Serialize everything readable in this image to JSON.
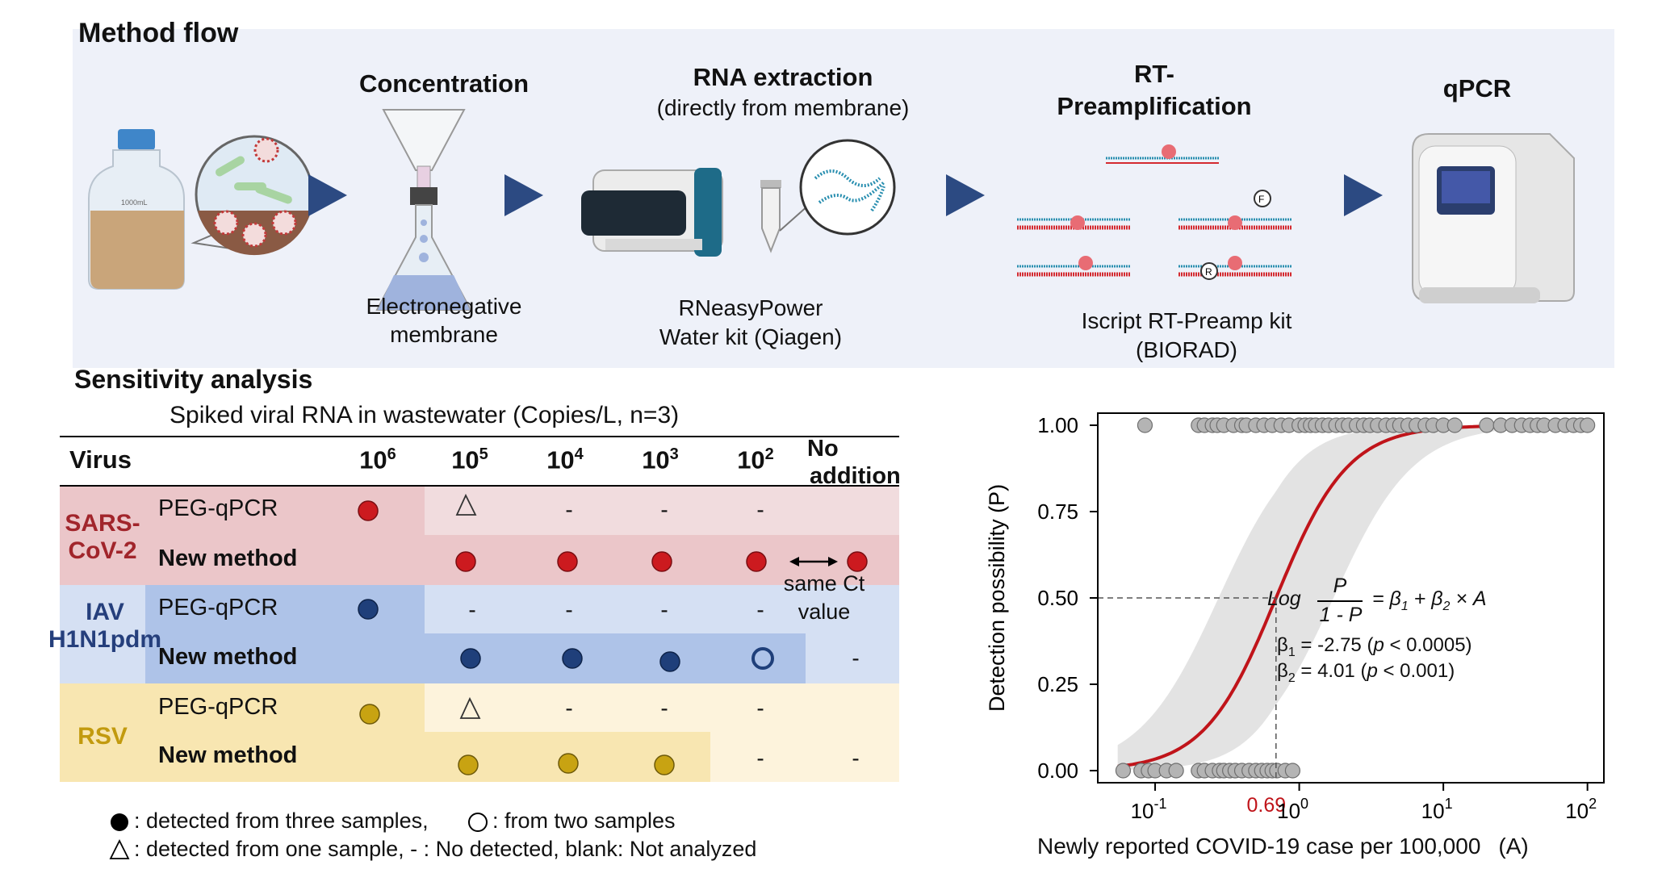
{
  "method_flow": {
    "title": "Method flow",
    "steps": {
      "concentration": {
        "title": "Concentration",
        "caption_line1": "Electronegative",
        "caption_line2": "membrane"
      },
      "rna_extraction": {
        "title": "RNA extraction",
        "subtitle": "(directly from membrane)",
        "caption_line1": "RNeasyPower",
        "caption_line2": "Water kit (Qiagen)"
      },
      "rt_preamp": {
        "title_line1": "RT-",
        "title_line2": "Preamplification",
        "caption_line1": "Iscript RT-Preamp kit",
        "caption_line2": "(BIORAD)"
      },
      "qpcr": {
        "title": "qPCR"
      }
    },
    "bottle_label": "1000mL",
    "probe_labels": {
      "f": "F",
      "r": "R"
    }
  },
  "sensitivity": {
    "title": "Sensitivity analysis",
    "subtitle": "Spiked viral RNA in wastewater (Copies/L, n=3)",
    "columns": {
      "virus": "Virus",
      "c1": {
        "base": "10",
        "exp": "6"
      },
      "c2": {
        "base": "10",
        "exp": "5"
      },
      "c3": {
        "base": "10",
        "exp": "4"
      },
      "c4": {
        "base": "10",
        "exp": "3"
      },
      "c5": {
        "base": "10",
        "exp": "2"
      },
      "no_addition_line1": "No",
      "no_addition_line2": "addition"
    },
    "viruses": {
      "sars": {
        "name_line1": "SARS-",
        "name_line2": "CoV-2",
        "color": "#c0141a",
        "peg": "PEG-qPCR",
        "new": "New method"
      },
      "iav": {
        "name_line1": "IAV",
        "name_line2": "H1N1pdm",
        "color": "#1f3f7a",
        "peg": "PEG-qPCR",
        "new": "New method"
      },
      "rsv": {
        "name_line1": "RSV",
        "color": "#c8a312",
        "peg": "PEG-qPCR",
        "new": "New method"
      }
    },
    "not_detected": "-",
    "same_ct_line1": "same Ct",
    "same_ct_line2": "value",
    "legend": {
      "line1_a": ": detected from three samples,",
      "line1_b": ":  from two samples",
      "line2_a": ": detected from one sample, - : No detected, blank: Not analyzed"
    }
  },
  "chart_data": {
    "type": "scatter",
    "title": "",
    "xlabel": "Newly reported COVID-19 case per 100,000",
    "xlabel_suffix": "(A)",
    "ylabel": "Detection possibility (P)",
    "x_scale": "log10",
    "xlim": [
      0.04,
      130
    ],
    "ylim": [
      0,
      1
    ],
    "x_ticks": [
      {
        "value": 0.1,
        "base": "10",
        "exp": "-1"
      },
      {
        "value": 1,
        "base": "10",
        "exp": "0"
      },
      {
        "value": 10,
        "base": "10",
        "exp": "1"
      },
      {
        "value": 100,
        "base": "10",
        "exp": "2"
      }
    ],
    "y_ticks": [
      "0.00",
      "0.25",
      "0.50",
      "0.75",
      "1.00"
    ],
    "y_tick_values": [
      0,
      0.25,
      0.5,
      0.75,
      1
    ],
    "curve_color": "#c0141a",
    "band_color": "#e3e3e3",
    "point_color": "#b4b4b4",
    "threshold": {
      "x": 0.69,
      "y": 0.5,
      "label": "0.69"
    },
    "points_detected_y1": [
      0.085,
      0.2,
      0.22,
      0.25,
      0.27,
      0.3,
      0.35,
      0.4,
      0.43,
      0.5,
      0.57,
      0.65,
      0.75,
      0.85,
      1.0,
      1.1,
      1.2,
      1.3,
      1.45,
      1.6,
      1.8,
      2.0,
      2.2,
      2.5,
      2.8,
      3.1,
      3.5,
      4.0,
      4.5,
      5.0,
      5.7,
      6.5,
      7.5,
      8.5,
      10.0,
      12.0,
      20.0,
      25.0,
      30.0,
      35.0,
      40.0,
      45.0,
      50.0,
      60.0,
      70.0,
      80.0,
      90.0,
      100.0
    ],
    "points_not_detected_y0": [
      0.06,
      0.08,
      0.09,
      0.1,
      0.12,
      0.14,
      0.2,
      0.22,
      0.25,
      0.28,
      0.3,
      0.33,
      0.36,
      0.4,
      0.45,
      0.5,
      0.55,
      0.6,
      0.65,
      0.7,
      0.8,
      0.9
    ],
    "formula": {
      "log": "Log",
      "num": "P",
      "den": "1 - P",
      "rhs": "= β",
      "b1sub": "1",
      "plus": " + β",
      "b2sub": "2",
      "times": " × A"
    },
    "coefficients": {
      "b1": {
        "sym": "β",
        "sub": "1",
        "text": " =  -2.75 (",
        "p": "p",
        "ptext": " < 0.0005)",
        "value": -2.75
      },
      "b2": {
        "sym": "β",
        "sub": "2",
        "text": " =    4.01 (",
        "p": "p",
        "ptext": " < 0.001)",
        "value": 4.01
      }
    }
  }
}
